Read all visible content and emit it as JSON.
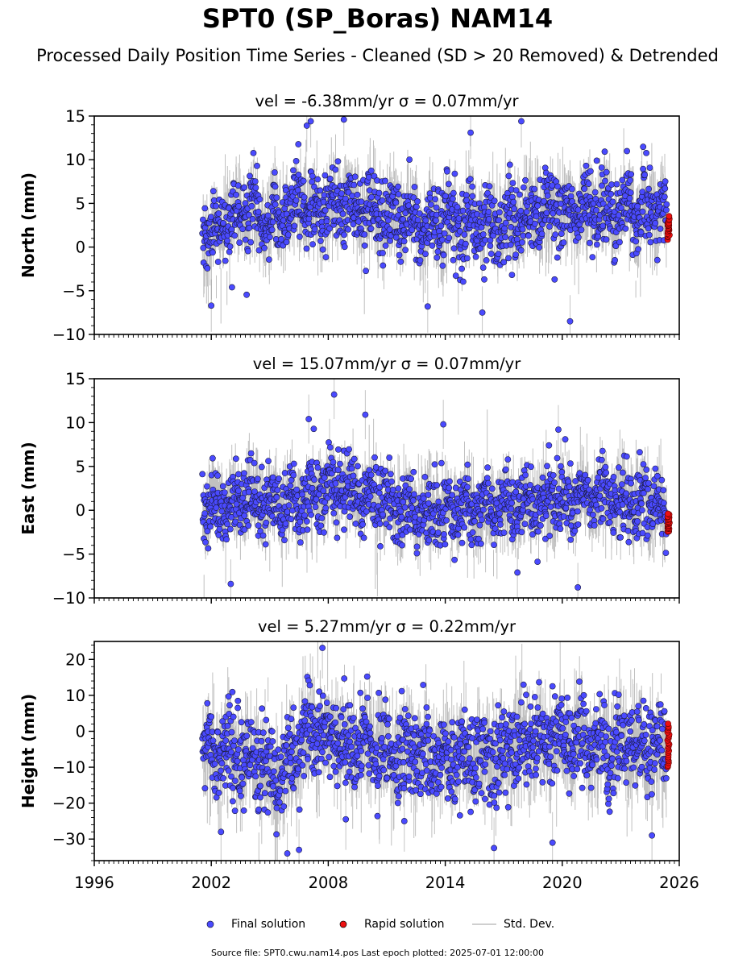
{
  "header": {
    "title": "SPT0 (SP_Boras) NAM14",
    "subtitle": "Processed Daily Position Time Series - Cleaned (SD > 20 Removed) & Detrended"
  },
  "colors": {
    "final": "#4a4aff",
    "final_edge": "#1a1a40",
    "rapid": "#ee1111",
    "stddev": "#8c8c8c"
  },
  "legend": {
    "final": "Final solution",
    "rapid": "Rapid solution",
    "stddev": "Std. Dev."
  },
  "footer": "Source file: SPT0.cwu.nam14.pos  Last epoch plotted: 2025-07-01 12:00:00",
  "chart_data": [
    {
      "type": "scatter",
      "title": "vel = -6.38mm/yr   σ = 0.07mm/yr",
      "ylabel": "North (mm)",
      "xlim": [
        1996,
        2026
      ],
      "ylim": [
        -10,
        15
      ],
      "yticks": [
        -10,
        -5,
        0,
        5,
        10,
        15
      ],
      "xticks": [
        "1996",
        "2002",
        "2008",
        "2014",
        "2020",
        "2026"
      ],
      "final_solution": {
        "x_range": [
          2001.55,
          2025.35
        ],
        "x": [
          2001.6,
          2002.2,
          2002.8,
          2003.4,
          2004.0,
          2004.6,
          2005.2,
          2005.8,
          2006.4,
          2007.0,
          2007.6,
          2008.2,
          2008.8,
          2009.4,
          2010.0,
          2010.6,
          2011.2,
          2011.8,
          2012.4,
          2013.0,
          2013.6,
          2014.2,
          2014.8,
          2015.4,
          2016.0,
          2016.6,
          2017.2,
          2017.8,
          2018.4,
          2019.0,
          2019.6,
          2020.2,
          2020.8,
          2021.4,
          2022.0,
          2022.6,
          2023.2,
          2023.8,
          2024.4,
          2025.0,
          2025.3
        ],
        "y": [
          2.0,
          1.5,
          3.0,
          3.5,
          4.5,
          3.0,
          3.5,
          4.0,
          5.0,
          4.5,
          4.0,
          4.5,
          5.0,
          4.0,
          4.5,
          3.5,
          4.0,
          3.0,
          3.0,
          2.5,
          3.0,
          2.5,
          3.0,
          3.0,
          2.5,
          2.5,
          2.5,
          3.0,
          3.5,
          3.5,
          4.0,
          4.0,
          4.0,
          4.5,
          4.5,
          4.0,
          4.0,
          4.0,
          4.0,
          4.5,
          4.0
        ],
        "spread": 3.0,
        "outliers": [
          [
            2002.0,
            -6.7
          ],
          [
            2007.1,
            14.4
          ],
          [
            2008.8,
            14.6
          ],
          [
            2017.9,
            14.4
          ],
          [
            2020.4,
            -8.5
          ],
          [
            2015.9,
            -7.5
          ],
          [
            2013.1,
            -6.8
          ],
          [
            2006.9,
            13.9
          ],
          [
            2015.3,
            13.1
          ]
        ]
      },
      "rapid_solution": {
        "x_range": [
          2025.4,
          2025.5
        ],
        "y": [
          1.0,
          3.5
        ]
      }
    },
    {
      "type": "scatter",
      "title": "vel = 15.07mm/yr   σ = 0.07mm/yr",
      "ylabel": "East (mm)",
      "xlim": [
        1996,
        2026
      ],
      "ylim": [
        -10,
        15
      ],
      "yticks": [
        -10,
        -5,
        0,
        5,
        10,
        15
      ],
      "xticks": [
        "1996",
        "2002",
        "2008",
        "2014",
        "2020",
        "2026"
      ],
      "final_solution": {
        "x_range": [
          2001.55,
          2025.35
        ],
        "x": [
          2001.6,
          2002.2,
          2002.8,
          2003.4,
          2004.0,
          2004.6,
          2005.2,
          2005.8,
          2006.4,
          2007.0,
          2007.6,
          2008.2,
          2008.8,
          2009.4,
          2010.0,
          2010.6,
          2011.2,
          2011.8,
          2012.4,
          2013.0,
          2013.6,
          2014.2,
          2014.8,
          2015.4,
          2016.0,
          2016.6,
          2017.2,
          2017.8,
          2018.4,
          2019.0,
          2019.6,
          2020.2,
          2020.8,
          2021.4,
          2022.0,
          2022.6,
          2023.2,
          2023.8,
          2024.4,
          2025.0,
          2025.3
        ],
        "y": [
          0.0,
          0.5,
          0.5,
          1.0,
          1.5,
          0.5,
          0.5,
          1.0,
          1.0,
          1.5,
          2.0,
          2.5,
          2.5,
          2.0,
          1.5,
          1.0,
          1.0,
          0.5,
          0.0,
          0.0,
          0.0,
          0.0,
          0.0,
          0.0,
          0.0,
          0.5,
          0.5,
          0.5,
          0.5,
          0.5,
          1.0,
          1.0,
          1.0,
          1.5,
          1.5,
          1.5,
          1.0,
          1.0,
          1.0,
          0.5,
          -1.5
        ],
        "spread": 2.8,
        "outliers": [
          [
            2008.3,
            13.2
          ],
          [
            2007.0,
            10.4
          ],
          [
            2003.0,
            -8.4
          ],
          [
            2020.8,
            -8.8
          ],
          [
            2017.7,
            -7.1
          ],
          [
            2009.9,
            10.9
          ],
          [
            2019.8,
            9.2
          ],
          [
            2013.9,
            9.8
          ]
        ]
      },
      "rapid_solution": {
        "x_range": [
          2025.4,
          2025.5
        ],
        "y": [
          -2.5,
          -0.5
        ]
      }
    },
    {
      "type": "scatter",
      "title": "vel = 5.27mm/yr   σ = 0.22mm/yr",
      "ylabel": "Height (mm)",
      "xlim": [
        1996,
        2026
      ],
      "ylim": [
        -36,
        25
      ],
      "yticks": [
        -30,
        -20,
        -10,
        0,
        10,
        20
      ],
      "xticks": [
        "1996",
        "2002",
        "2008",
        "2014",
        "2020",
        "2026"
      ],
      "final_solution": {
        "x_range": [
          2001.55,
          2025.35
        ],
        "x": [
          2001.6,
          2002.2,
          2002.8,
          2003.4,
          2004.0,
          2004.6,
          2005.2,
          2005.8,
          2006.4,
          2007.0,
          2007.6,
          2008.2,
          2008.8,
          2009.4,
          2010.0,
          2010.6,
          2011.2,
          2011.8,
          2012.4,
          2013.0,
          2013.6,
          2014.2,
          2014.8,
          2015.4,
          2016.0,
          2016.6,
          2017.2,
          2017.8,
          2018.4,
          2019.0,
          2019.6,
          2020.2,
          2020.8,
          2021.4,
          2022.0,
          2022.6,
          2023.2,
          2023.8,
          2024.4,
          2025.0,
          2025.3
        ],
        "y": [
          -5,
          -8,
          -6,
          -7,
          -6,
          -10,
          -12,
          -10,
          -6,
          -2,
          0,
          -1,
          -2,
          -4,
          -3,
          -5,
          -6,
          -6,
          -6,
          -6,
          -7,
          -7,
          -6,
          -8,
          -8,
          -7,
          -4,
          -3,
          -3,
          -3,
          -2,
          -3,
          -3,
          -4,
          -4,
          -4,
          -4,
          -5,
          -5,
          -6,
          -4
        ],
        "spread": 8.5,
        "outliers": [
          [
            2007.7,
            23.2
          ],
          [
            2005.9,
            -34.0
          ],
          [
            2006.5,
            -33.0
          ],
          [
            2016.5,
            -32.5
          ],
          [
            2019.5,
            -31.0
          ],
          [
            2024.6,
            -29.0
          ],
          [
            2002.5,
            -28.0
          ],
          [
            2011.9,
            -25.0
          ],
          [
            2008.9,
            -24.5
          ]
        ]
      },
      "rapid_solution": {
        "x_range": [
          2025.4,
          2025.5
        ],
        "y": [
          -10,
          2
        ]
      }
    }
  ]
}
